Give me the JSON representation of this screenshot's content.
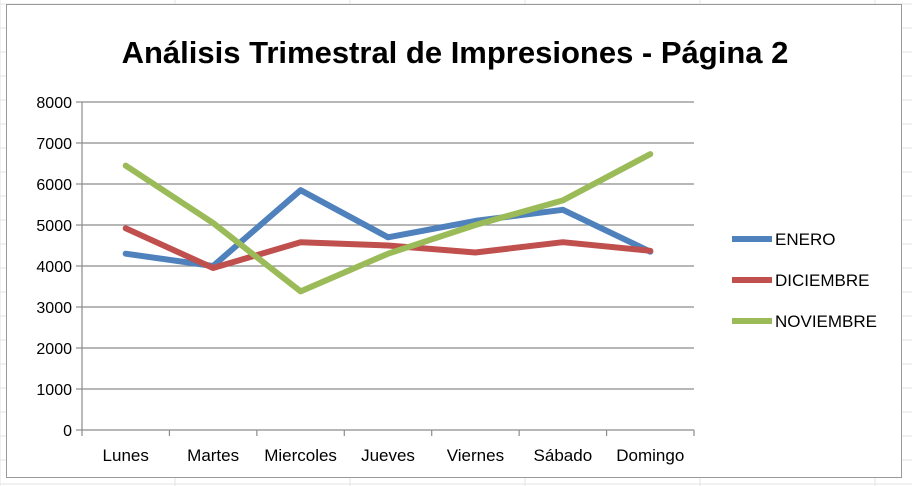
{
  "chart_data": {
    "type": "line",
    "title": "Análisis Trimestral de Impresiones - Página 2",
    "categories": [
      "Lunes",
      "Martes",
      "Miercoles",
      "Jueves",
      "Viernes",
      "Sábado",
      "Domingo"
    ],
    "ylim": [
      0,
      8000
    ],
    "yticks": [
      0,
      1000,
      2000,
      3000,
      4000,
      5000,
      6000,
      7000,
      8000
    ],
    "grid": true,
    "legend_position": "right",
    "series": [
      {
        "name": "ENERO",
        "color": "#4f81bd",
        "values": [
          4300,
          4000,
          5850,
          4700,
          5100,
          5370,
          4350
        ]
      },
      {
        "name": "DICIEMBRE",
        "color": "#c0504d",
        "values": [
          4920,
          3950,
          4580,
          4500,
          4330,
          4580,
          4370
        ]
      },
      {
        "name": "NOVIEMBRE",
        "color": "#9bbb59",
        "values": [
          6450,
          5050,
          3380,
          4300,
          5000,
          5600,
          6730
        ]
      }
    ]
  }
}
